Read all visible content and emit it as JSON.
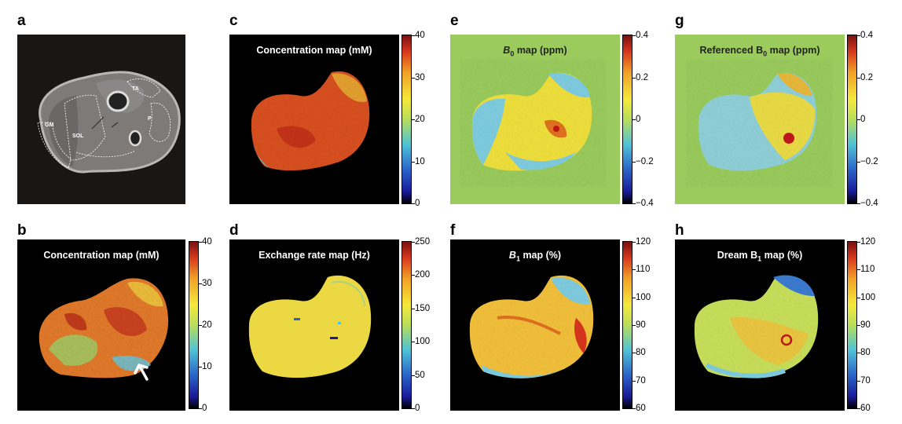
{
  "panels": [
    {
      "id": "a",
      "label": "a",
      "title": ""
    },
    {
      "id": "b",
      "label": "b",
      "title": "Concentration map (mM)",
      "colorbar": {
        "ticks": [
          "40",
          "30",
          "20",
          "10",
          "0"
        ]
      }
    },
    {
      "id": "c",
      "label": "c",
      "title": "Concentration map (mM)",
      "colorbar": {
        "ticks": [
          "40",
          "30",
          "20",
          "10",
          "0"
        ]
      }
    },
    {
      "id": "d",
      "label": "d",
      "title": "Exchange rate map (Hz)",
      "colorbar": {
        "ticks": [
          "250",
          "200",
          "150",
          "100",
          "50",
          "0"
        ]
      }
    },
    {
      "id": "e",
      "label": "e",
      "title_pre": "B",
      "title_sub": "0",
      "title_post": " map (ppm)",
      "colorbar": {
        "ticks": [
          "0.4",
          "0.2",
          "0",
          "−0.2",
          "−0.4"
        ]
      }
    },
    {
      "id": "f",
      "label": "f",
      "title_pre": "B",
      "title_sub": "1",
      "title_post": " map (%)",
      "colorbar": {
        "ticks": [
          "120",
          "110",
          "100",
          "90",
          "80",
          "70",
          "60"
        ]
      }
    },
    {
      "id": "g",
      "label": "g",
      "title_pre": "Referenced B",
      "title_sub": "0",
      "title_post": " map (ppm)",
      "colorbar": {
        "ticks": [
          "0.4",
          "0.2",
          "0",
          "−0.2",
          "−0.4"
        ]
      }
    },
    {
      "id": "h",
      "label": "h",
      "title_pre": "Dream B",
      "title_sub": "1",
      "title_post": " map (%)",
      "colorbar": {
        "ticks": [
          "120",
          "110",
          "100",
          "90",
          "80",
          "70",
          "60"
        ]
      }
    }
  ],
  "anatomy_labels": {
    "ta": "TA",
    "p": "P",
    "gm": "GM",
    "sol": "SOL"
  },
  "colors": {
    "jet_low": "#000080",
    "jet_mid": "#f5e93a",
    "jet_high": "#800000",
    "green_bg": "#9acb5c",
    "black_bg": "#000000"
  }
}
